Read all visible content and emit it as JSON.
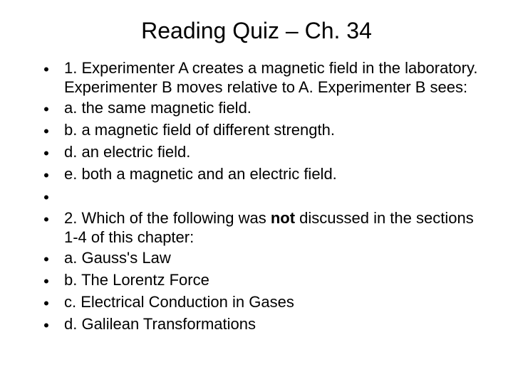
{
  "title": "Reading Quiz – Ch. 34",
  "rows": [
    {
      "bullet": "•",
      "text": "1.  Experimenter A creates a magnetic field in the laboratory. Experimenter B moves relative to A. Experimenter B sees:"
    },
    {
      "bullet": "•",
      "text": "a.  the same magnetic field."
    },
    {
      "bullet": "•",
      "text": "b. a magnetic field of different strength."
    },
    {
      "bullet": "•",
      "text": "d. an electric field."
    },
    {
      "bullet": "•",
      "text": "e. both a magnetic and an electric field."
    },
    {
      "bullet": "•",
      "text": ""
    },
    {
      "bullet": "•",
      "text_pre": "2.  Which of the following was ",
      "text_bold": "not",
      "text_post": " discussed in the sections 1-4 of this chapter:"
    },
    {
      "bullet": "•",
      "text": "a.  Gauss's Law"
    },
    {
      "bullet": "•",
      "text": "b.  The Lorentz Force"
    },
    {
      "bullet": "•",
      "text": "c.  Electrical Conduction in Gases"
    },
    {
      "bullet": "•",
      "text": "d.  Galilean Transformations"
    }
  ],
  "colors": {
    "background": "#ffffff",
    "text": "#000000"
  },
  "fonts": {
    "title_size": 32,
    "body_size": 22,
    "family": "Arial"
  }
}
